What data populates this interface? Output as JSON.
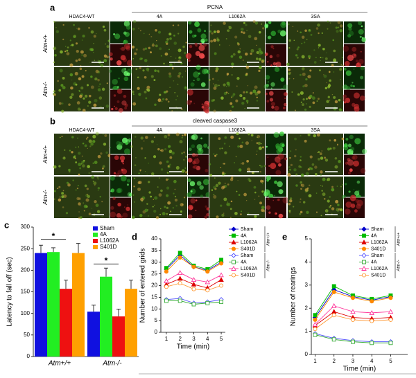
{
  "panel_a": {
    "label": "a",
    "title": "PCNA",
    "columns": [
      "HDAC4-WT",
      "4A",
      "L1062A",
      "3SA"
    ],
    "rows": [
      "Atm+/+",
      "Atm-/-"
    ]
  },
  "panel_b": {
    "label": "b",
    "title": "cleaved caspase3",
    "columns": [
      "HDAC4-WT",
      "4A",
      "L1062A",
      "3SA"
    ],
    "rows": [
      "Atm+/+",
      "Atm-/-"
    ]
  },
  "chart_data": [
    {
      "panel": "c",
      "type": "bar",
      "ylabel": "Latency to fall off (sec)",
      "categories": [
        "Atm+/+",
        "Atm-/-"
      ],
      "series": [
        {
          "name": "Sham",
          "color": "#1010e0",
          "values": [
            240,
            104
          ],
          "errors": [
            18,
            15
          ]
        },
        {
          "name": "4A",
          "color": "#22ee22",
          "values": [
            242,
            185
          ],
          "errors": [
            10,
            20
          ]
        },
        {
          "name": "L1062A",
          "color": "#ee1111",
          "values": [
            157,
            93
          ],
          "errors": [
            20,
            17
          ]
        },
        {
          "name": "S401D",
          "color": "#ffa000",
          "values": [
            240,
            157
          ],
          "errors": [
            22,
            20
          ]
        }
      ],
      "ylim": [
        0,
        300
      ],
      "yticks": [
        0,
        50,
        100,
        150,
        200,
        250,
        300
      ],
      "annotations": [
        "*",
        "*"
      ]
    },
    {
      "panel": "d",
      "type": "line",
      "xlabel": "Time (min)",
      "ylabel": "Number of entered grids",
      "x": [
        1,
        2,
        3,
        4,
        5
      ],
      "xlim": [
        0.6,
        5.3
      ],
      "xticks": [
        1,
        2,
        3,
        4,
        5
      ],
      "ylim": [
        0,
        40
      ],
      "yticks": [
        0,
        5,
        10,
        15,
        20,
        25,
        30,
        35,
        40
      ],
      "legend_groups": [
        "Atm+/+",
        "Atm-/-"
      ],
      "series": [
        {
          "name": "Sham",
          "color": "#0000cc",
          "marker": "diamond",
          "filled": true,
          "values": [
            27,
            33,
            28,
            26.5,
            30
          ]
        },
        {
          "name": "4A",
          "color": "#00bb00",
          "marker": "square",
          "filled": true,
          "values": [
            27.5,
            34,
            28.5,
            27,
            31
          ]
        },
        {
          "name": "L1062A",
          "color": "#dd0000",
          "marker": "triangle",
          "filled": true,
          "values": [
            20.5,
            23,
            20.5,
            19,
            22.5
          ]
        },
        {
          "name": "S401D",
          "color": "#ff8800",
          "marker": "circle",
          "filled": true,
          "values": [
            26,
            32,
            28,
            26,
            29.5
          ]
        },
        {
          "name": "Sham",
          "color": "#5555ff",
          "marker": "diamond",
          "filled": false,
          "values": [
            14,
            14.5,
            12.5,
            13,
            14
          ]
        },
        {
          "name": "4A",
          "color": "#33aa33",
          "marker": "square",
          "filled": false,
          "values": [
            13.5,
            13.5,
            12,
            12.5,
            13
          ]
        },
        {
          "name": "L1062A",
          "color": "#ff3399",
          "marker": "triangle",
          "filled": false,
          "values": [
            22,
            25.5,
            22.5,
            21.5,
            24.5
          ]
        },
        {
          "name": "S401D",
          "color": "#ff9933",
          "marker": "circle",
          "filled": false,
          "values": [
            19.5,
            21,
            18.5,
            18,
            20
          ]
        }
      ]
    },
    {
      "panel": "e",
      "type": "line",
      "xlabel": "Time (min)",
      "ylabel": "Number of rearings",
      "x": [
        1,
        2,
        3,
        4,
        5
      ],
      "xlim": [
        0.8,
        5.9
      ],
      "xticks": [
        1,
        2,
        3,
        4,
        5
      ],
      "ylim": [
        0,
        5
      ],
      "yticks": [
        0,
        1,
        2,
        3,
        4,
        5
      ],
      "legend_groups": [
        "Atm+/+",
        "Atm-/-"
      ],
      "series": [
        {
          "name": "Sham",
          "color": "#0000cc",
          "marker": "diamond",
          "filled": true,
          "values": [
            1.6,
            2.8,
            2.5,
            2.35,
            2.5
          ]
        },
        {
          "name": "4A",
          "color": "#00bb00",
          "marker": "square",
          "filled": true,
          "values": [
            1.7,
            2.95,
            2.55,
            2.4,
            2.55
          ]
        },
        {
          "name": "L1062A",
          "color": "#dd0000",
          "marker": "triangle",
          "filled": true,
          "values": [
            1.25,
            1.85,
            1.6,
            1.55,
            1.6
          ]
        },
        {
          "name": "S401D",
          "color": "#ff8800",
          "marker": "circle",
          "filled": true,
          "values": [
            1.5,
            2.7,
            2.45,
            2.3,
            2.45
          ]
        },
        {
          "name": "Sham",
          "color": "#5555ff",
          "marker": "diamond",
          "filled": false,
          "values": [
            0.9,
            0.7,
            0.6,
            0.55,
            0.55
          ]
        },
        {
          "name": "4A",
          "color": "#33aa33",
          "marker": "square",
          "filled": false,
          "values": [
            0.85,
            0.65,
            0.55,
            0.5,
            0.5
          ]
        },
        {
          "name": "L1062A",
          "color": "#ff3399",
          "marker": "triangle",
          "filled": false,
          "values": [
            1.3,
            2.1,
            1.85,
            1.8,
            1.85
          ]
        },
        {
          "name": "S401D",
          "color": "#ff9933",
          "marker": "circle",
          "filled": false,
          "values": [
            1.1,
            1.7,
            1.5,
            1.45,
            1.5
          ]
        }
      ]
    }
  ]
}
